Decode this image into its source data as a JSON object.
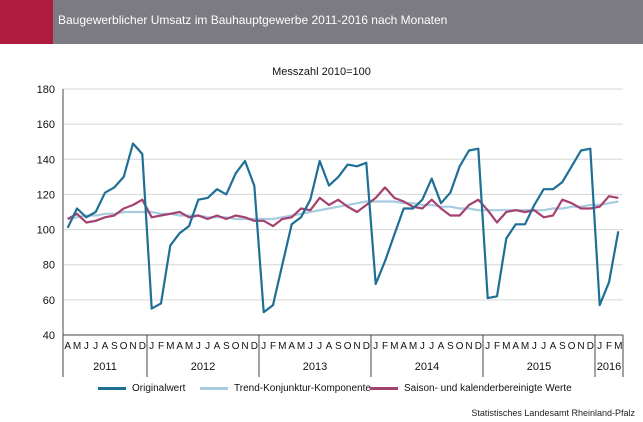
{
  "header": {
    "title": "Baugewerblicher Umsatz im Bauhauptgewerbe 2011-2016 nach Monaten"
  },
  "source": "Statistisches Landesamt Rheinland-Pfalz",
  "colors": {
    "original": "#1f6f95",
    "trend": "#a8cbe0",
    "saison": "#a4416f",
    "header_bg": "#7c7b82",
    "accent": "#b01a3f"
  },
  "chart_data": {
    "type": "line",
    "title": "",
    "subtitle": "Messzahl 2010=100",
    "xlabel": "",
    "ylabel": "",
    "ylim": [
      40,
      180
    ],
    "yticks": [
      40,
      60,
      80,
      100,
      120,
      140,
      160,
      180
    ],
    "grid": true,
    "legend_position": "bottom",
    "years": [
      {
        "label": "2011",
        "months": 9
      },
      {
        "label": "2012",
        "months": 12
      },
      {
        "label": "2013",
        "months": 12
      },
      {
        "label": "2014",
        "months": 12
      },
      {
        "label": "2015",
        "months": 12
      },
      {
        "label": "2016",
        "months": 3
      }
    ],
    "categories": [
      "A",
      "M",
      "J",
      "J",
      "A",
      "S",
      "O",
      "N",
      "D",
      "J",
      "F",
      "M",
      "A",
      "M",
      "J",
      "J",
      "A",
      "S",
      "O",
      "N",
      "D",
      "J",
      "F",
      "M",
      "A",
      "M",
      "J",
      "J",
      "A",
      "S",
      "O",
      "N",
      "D",
      "J",
      "F",
      "M",
      "A",
      "M",
      "J",
      "J",
      "A",
      "S",
      "O",
      "N",
      "D",
      "J",
      "F",
      "M",
      "A",
      "M",
      "J",
      "J",
      "A",
      "S",
      "O",
      "N",
      "D",
      "J",
      "F",
      "M"
    ],
    "series": [
      {
        "name": "Originalwert",
        "color": "#1f6f95",
        "values": [
          101,
          112,
          107,
          110,
          121,
          124,
          130,
          149,
          143,
          55,
          58,
          91,
          98,
          102,
          117,
          118,
          123,
          120,
          132,
          139,
          125,
          53,
          57,
          80,
          103,
          107,
          117,
          139,
          125,
          130,
          137,
          136,
          138,
          69,
          82,
          97,
          112,
          112,
          117,
          129,
          115,
          121,
          136,
          145,
          146,
          61,
          62,
          95,
          103,
          103,
          114,
          123,
          123,
          127,
          136,
          145,
          146,
          57,
          70,
          99
        ]
      },
      {
        "name": "Trend-Konjunktur-Komponente",
        "color": "#a8cbe0",
        "values": [
          106,
          107,
          108,
          108,
          109,
          109,
          110,
          110,
          110,
          110,
          109,
          109,
          108,
          108,
          108,
          107,
          107,
          107,
          106,
          106,
          106,
          106,
          106,
          107,
          108,
          109,
          110,
          111,
          112,
          113,
          114,
          115,
          116,
          116,
          116,
          116,
          115,
          115,
          114,
          114,
          113,
          113,
          112,
          112,
          111,
          111,
          111,
          111,
          111,
          111,
          111,
          111,
          112,
          112,
          113,
          113,
          114,
          114,
          115,
          116
        ]
      },
      {
        "name": "Saison- und kalenderbereinigte Werte",
        "color": "#a4416f",
        "values": [
          106,
          109,
          104,
          105,
          107,
          108,
          112,
          114,
          117,
          107,
          108,
          109,
          110,
          107,
          108,
          106,
          108,
          106,
          108,
          107,
          105,
          105,
          102,
          106,
          107,
          112,
          111,
          118,
          114,
          117,
          113,
          110,
          114,
          118,
          124,
          118,
          116,
          113,
          112,
          117,
          112,
          108,
          108,
          114,
          117,
          111,
          104,
          110,
          111,
          110,
          111,
          107,
          108,
          117,
          115,
          112,
          112,
          113,
          119,
          118
        ]
      }
    ]
  }
}
